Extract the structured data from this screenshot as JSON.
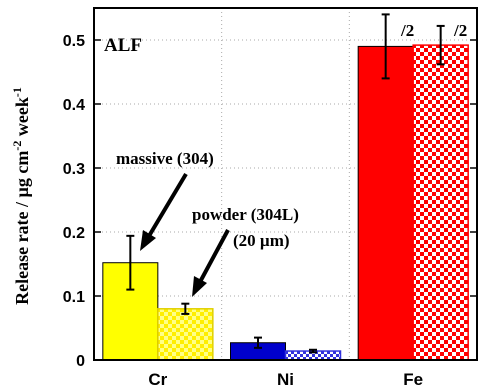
{
  "chart_data": {
    "type": "bar",
    "panel_label": "ALF",
    "ylabel": "Release rate / µg cm⁻² week⁻¹",
    "ylabel_parts": [
      "Release rate / µg cm",
      "-2",
      " week",
      "-1"
    ],
    "ylim": [
      0,
      0.55
    ],
    "yticks": [
      0,
      0.1,
      0.2,
      0.3,
      0.4,
      0.5
    ],
    "ytick_labels": [
      "0",
      "0.1",
      "0.2",
      "0.3",
      "0.4",
      "0.5"
    ],
    "grid": true,
    "categories": [
      "Cr",
      "Ni",
      "Fe"
    ],
    "series": [
      {
        "values": [
          0.152,
          0.027,
          0.49
        ],
        "errors": [
          0.042,
          0.008,
          0.05
        ],
        "color": "#ffff00",
        "pattern": "solid"
      },
      {
        "values": [
          0.08,
          0.014,
          0.492
        ],
        "errors": [
          0.008,
          0.002,
          0.03
        ],
        "color": "#ffff00",
        "pattern": "checkered"
      }
    ],
    "bar_colors": {
      "Cr": "#ffff00",
      "Ni": "#0000cc",
      "Fe": "#ff0000"
    },
    "fe_scale_label": "/2",
    "annotations": [
      {
        "text": "massive (304)"
      },
      {
        "text": "powder (304L)"
      },
      {
        "text": "(20 µm)"
      }
    ]
  }
}
